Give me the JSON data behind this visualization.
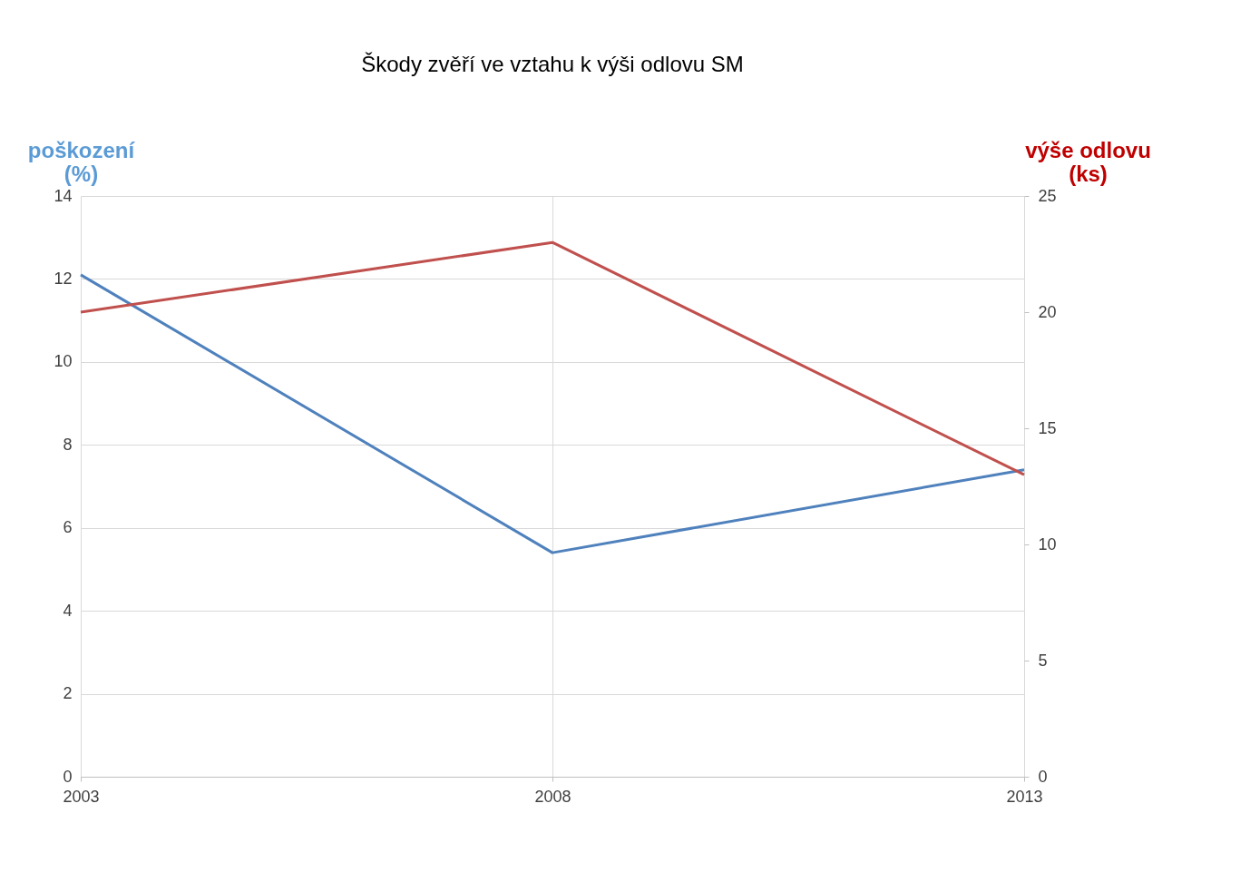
{
  "chart_data": {
    "type": "line",
    "title": "Škody zvěří ve vztahu k výši odlovu SM",
    "ylabel": "poškození (%)",
    "y2label": "výše odlovu (ks)",
    "x": [
      2003,
      2008,
      2013
    ],
    "xlim": [
      2003,
      2013
    ],
    "xticks": [
      2003,
      2008,
      2013
    ],
    "ylim": [
      0,
      14
    ],
    "yticks": [
      0,
      2,
      4,
      6,
      8,
      10,
      12,
      14
    ],
    "y2lim": [
      0,
      25
    ],
    "y2ticks": [
      0,
      5,
      10,
      15,
      20,
      25
    ],
    "grid": true,
    "marker": "none",
    "line_style": "solid",
    "series": [
      {
        "color": "#4f81bd",
        "values": [
          12.1,
          5.4,
          7.4
        ]
      },
      {
        "color": "#c0504d",
        "axis": "y2",
        "values": [
          20,
          23,
          13
        ]
      }
    ]
  }
}
